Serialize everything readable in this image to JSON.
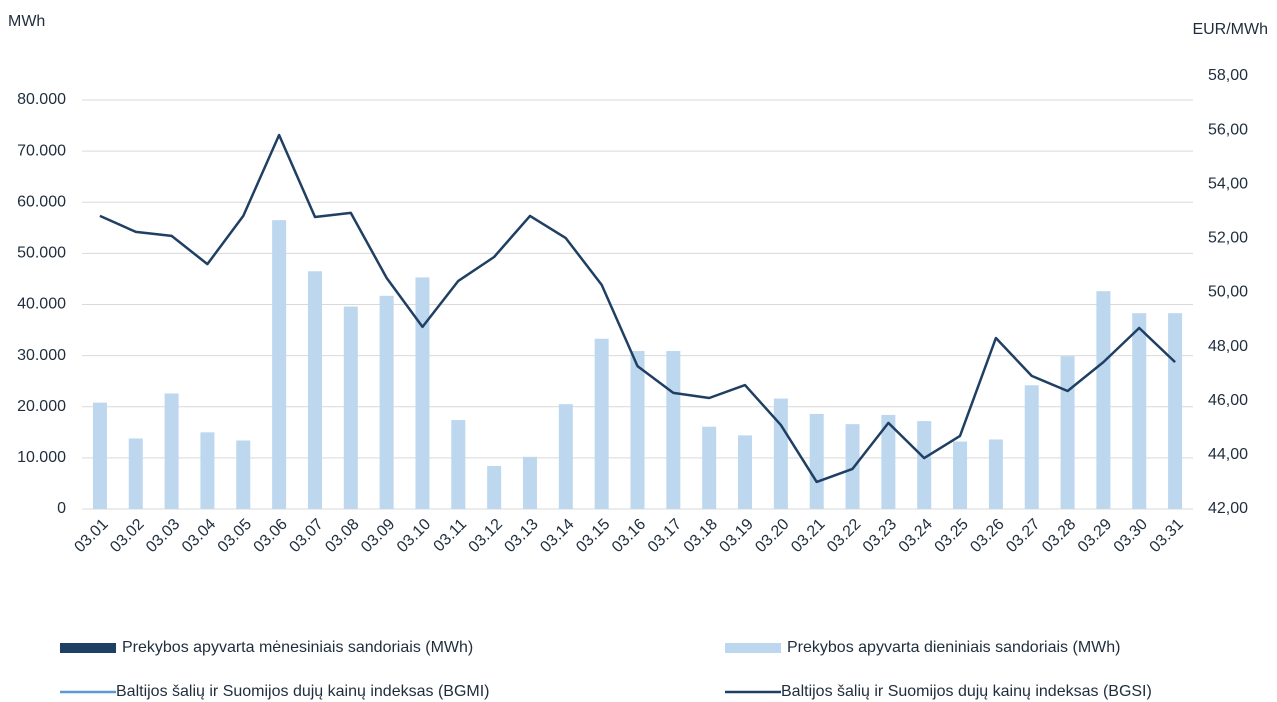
{
  "chart_data": {
    "type": "bar",
    "ylabel": "MWh",
    "y2label": "EUR/MWh",
    "categories": [
      "03.01",
      "03.02",
      "03.03",
      "03.04",
      "03.05",
      "03.06",
      "03.07",
      "03.08",
      "03.09",
      "03.10",
      "03.11",
      "03.12",
      "03.13",
      "03.14",
      "03.15",
      "03.16",
      "03.17",
      "03.18",
      "03.19",
      "03.20",
      "03.21",
      "03.22",
      "03.23",
      "03.24",
      "03.25",
      "03.26",
      "03.27",
      "03.28",
      "03.29",
      "03.30",
      "03.31"
    ],
    "ylim": [
      0,
      80000
    ],
    "yticks": [
      0,
      {
        "value": 10000,
        "label": "10.000"
      },
      {
        "value": 20000,
        "label": "20.000"
      },
      {
        "value": 30000,
        "label": "30.000"
      },
      {
        "value": 40000,
        "label": "40.000"
      },
      {
        "value": 50000,
        "label": "50.000"
      },
      {
        "value": 60000,
        "label": "60.000"
      },
      {
        "value": 70000,
        "label": "70.000"
      },
      {
        "value": 80000,
        "label": "80.000"
      }
    ],
    "y2lim": [
      42,
      58
    ],
    "y2ticks": [
      {
        "value": 42,
        "label": "42,00"
      },
      {
        "value": 44,
        "label": "44,00"
      },
      {
        "value": 46,
        "label": "46,00"
      },
      {
        "value": 48,
        "label": "48,00"
      },
      {
        "value": 50,
        "label": "50,00"
      },
      {
        "value": 52,
        "label": "52,00"
      },
      {
        "value": 54,
        "label": "54,00"
      },
      {
        "value": 56,
        "label": "56,00"
      },
      {
        "value": 58,
        "label": "58,00"
      }
    ],
    "grid": true,
    "series": [
      {
        "name": "Prekybos apyvarta mėnesiniais sandoriais (MWh)",
        "type": "bar",
        "color": "#1f3f63",
        "values": [
          null,
          null,
          null,
          null,
          null,
          null,
          null,
          null,
          null,
          null,
          null,
          null,
          null,
          null,
          null,
          null,
          null,
          null,
          null,
          null,
          null,
          null,
          null,
          null,
          null,
          null,
          null,
          null,
          null,
          null,
          null
        ]
      },
      {
        "name": "Prekybos apyvarta dieniniais sandoriais (MWh)",
        "type": "bar",
        "color": "#bdd7ee",
        "values": [
          20800,
          13800,
          22600,
          15000,
          13400,
          56500,
          46500,
          39600,
          41700,
          45300,
          17400,
          8400,
          10200,
          20500,
          33300,
          30900,
          30900,
          16100,
          14400,
          21600,
          18600,
          16600,
          18400,
          17200,
          13200,
          13600,
          24200,
          29900,
          42600,
          38300,
          38300
        ]
      },
      {
        "name": "Baltijos šalių ir Suomijos dujų kainų indeksas (BGMI)",
        "type": "line",
        "axis": "y2",
        "color": "#5b9bd5",
        "values": [
          null,
          null,
          null,
          null,
          null,
          null,
          null,
          null,
          null,
          null,
          null,
          null,
          null,
          null,
          null,
          null,
          null,
          null,
          null,
          null,
          null,
          null,
          null,
          null,
          null,
          null,
          null,
          null,
          null,
          null,
          null
        ]
      },
      {
        "name": "Baltijos šalių ir Suomijos dujų kainų indeksas (BGSI)",
        "type": "line",
        "axis": "y2",
        "color": "#1f3f63",
        "values": [
          52.83,
          52.24,
          52.09,
          51.05,
          52.83,
          55.82,
          52.79,
          52.94,
          50.54,
          48.73,
          50.43,
          51.31,
          52.83,
          52.01,
          50.28,
          47.28,
          46.29,
          46.1,
          46.58,
          45.1,
          43.0,
          43.48,
          45.18,
          43.88,
          44.7,
          48.32,
          46.92,
          46.36,
          47.43,
          48.69,
          47.43
        ]
      }
    ]
  }
}
